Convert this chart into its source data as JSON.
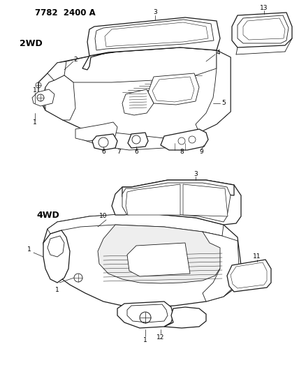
{
  "background_color": "#ffffff",
  "line_color": "#1a1a1a",
  "header": "7782  2400 A",
  "label_2wd": "2WD",
  "label_4wd": "4WD",
  "fig_width": 4.28,
  "fig_height": 5.33,
  "dpi": 100
}
